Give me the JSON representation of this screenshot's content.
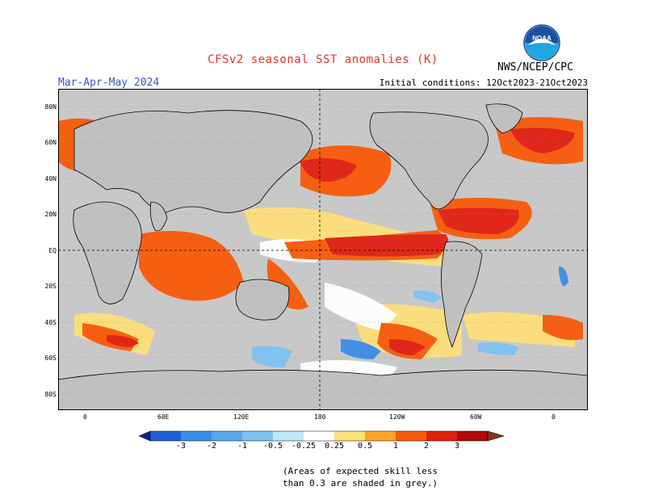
{
  "header": {
    "title": "CFSv2 seasonal SST anomalies (K)",
    "season": "Mar-Apr-May 2024",
    "initial_conditions": "Initial conditions: 12Oct2023-21Oct2023",
    "agency": "NWS/NCEP/CPC",
    "logo_text": "NOAA"
  },
  "map": {
    "latitude_labels": [
      "80N",
      "60N",
      "40N",
      "20N",
      "EQ",
      "20S",
      "40S",
      "60S",
      "80S"
    ],
    "longitude_labels": [
      "0",
      "60E",
      "120E",
      "180",
      "120W",
      "60W",
      "0"
    ],
    "land_color": "#c0c0c0",
    "missing_skill_color": "#c0c0c0"
  },
  "colorbar": {
    "tick_labels": [
      "-3",
      "-2",
      "-1",
      "-0.5",
      "-0.25",
      "0.25",
      "0.5",
      "1",
      "2",
      "3"
    ],
    "colors": [
      "#1a1a9a",
      "#1e5fd6",
      "#3a8ee8",
      "#7ec2f2",
      "#bfe6fa",
      "#ffffff",
      "#fde07a",
      "#fca528",
      "#f95a08",
      "#e12010",
      "#b00a0a",
      "#8b2e22"
    ]
  },
  "note": {
    "line1": "(Areas of expected skill less",
    "line2": "than 0.3 are shaded in grey.)"
  }
}
